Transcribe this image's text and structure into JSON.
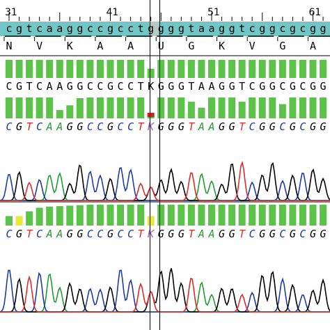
{
  "ruler": {
    "labels": [
      {
        "text": "31",
        "pos": 0
      },
      {
        "text": "41",
        "pos": 10
      },
      {
        "text": "51",
        "pos": 20
      },
      {
        "text": "61",
        "pos": 30
      }
    ]
  },
  "reference": {
    "sequence": "cgtcaaggccgcctggggtaaggtcggcgcgg",
    "band_color": "#71c6c6"
  },
  "translation": [
    "N",
    "",
    "",
    "V",
    "",
    "",
    "K",
    "",
    "",
    "A",
    "",
    "",
    "A",
    "",
    "",
    "U",
    "",
    "",
    "G",
    "",
    "",
    "K",
    "",
    "",
    "V",
    "",
    "",
    "G",
    "",
    "",
    "A",
    "",
    ""
  ],
  "track1": {
    "basecalls": "CGTCAAGGCCGCCTKGGGTAAGGTCGGCGCGG",
    "basecalls_colored": "CGTCAAGGCCGCCTKGGGTAAGGTCGGCGCGG",
    "quality_top": [
      88,
      88,
      88,
      88,
      88,
      88,
      88,
      88,
      88,
      88,
      88,
      88,
      88,
      88,
      45,
      88,
      88,
      88,
      88,
      88,
      88,
      88,
      88,
      88,
      88,
      88,
      88,
      88,
      88,
      88,
      88,
      88
    ],
    "quality_bottom": [
      88,
      88,
      88,
      88,
      88,
      35,
      55,
      85,
      88,
      88,
      88,
      88,
      88,
      88,
      10,
      88,
      88,
      88,
      70,
      45,
      88,
      88,
      88,
      70,
      88,
      88,
      88,
      60,
      88,
      88,
      88,
      88
    ]
  },
  "track2": {
    "basecalls": "CGTCAAGGCCGCCTKGGGTAAGGTCGGCGCGG",
    "quality": [
      40,
      40,
      60,
      75,
      80,
      82,
      84,
      86,
      88,
      88,
      88,
      88,
      88,
      88,
      40,
      88,
      88,
      88,
      88,
      88,
      88,
      88,
      88,
      88,
      88,
      88,
      88,
      88,
      88,
      88,
      88,
      88
    ]
  },
  "colors": {
    "A": "#1f9e2e",
    "C": "#1e3aa8",
    "G": "#000000",
    "T": "#e02a2a",
    "K": "#a060c0",
    "quality_bar": "#5cc24a",
    "low_quality_bar": "#e8e83a",
    "error_mark": "#cc2222"
  }
}
